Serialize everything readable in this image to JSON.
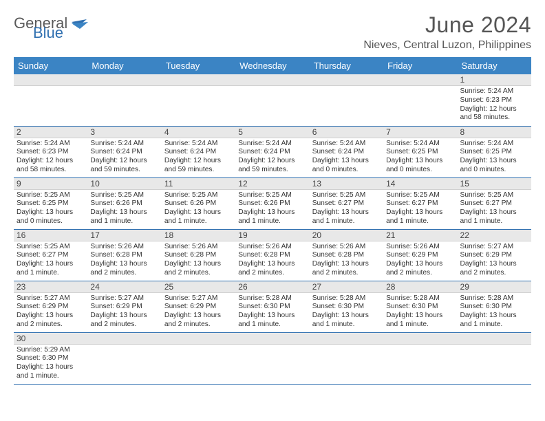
{
  "brand": {
    "part1": "General",
    "part2": "Blue"
  },
  "title": "June 2024",
  "location": "Nieves, Central Luzon, Philippines",
  "colors": {
    "header_bg": "#3b84c4",
    "border": "#2f6fb0",
    "daybar": "#e8e8e8",
    "text": "#333333"
  },
  "weekdays": [
    "Sunday",
    "Monday",
    "Tuesday",
    "Wednesday",
    "Thursday",
    "Friday",
    "Saturday"
  ],
  "first_weekday_index": 6,
  "days": [
    {
      "n": 1,
      "sunrise": "5:24 AM",
      "sunset": "6:23 PM",
      "daylight": "12 hours and 58 minutes."
    },
    {
      "n": 2,
      "sunrise": "5:24 AM",
      "sunset": "6:23 PM",
      "daylight": "12 hours and 58 minutes."
    },
    {
      "n": 3,
      "sunrise": "5:24 AM",
      "sunset": "6:24 PM",
      "daylight": "12 hours and 59 minutes."
    },
    {
      "n": 4,
      "sunrise": "5:24 AM",
      "sunset": "6:24 PM",
      "daylight": "12 hours and 59 minutes."
    },
    {
      "n": 5,
      "sunrise": "5:24 AM",
      "sunset": "6:24 PM",
      "daylight": "12 hours and 59 minutes."
    },
    {
      "n": 6,
      "sunrise": "5:24 AM",
      "sunset": "6:24 PM",
      "daylight": "13 hours and 0 minutes."
    },
    {
      "n": 7,
      "sunrise": "5:24 AM",
      "sunset": "6:25 PM",
      "daylight": "13 hours and 0 minutes."
    },
    {
      "n": 8,
      "sunrise": "5:24 AM",
      "sunset": "6:25 PM",
      "daylight": "13 hours and 0 minutes."
    },
    {
      "n": 9,
      "sunrise": "5:25 AM",
      "sunset": "6:25 PM",
      "daylight": "13 hours and 0 minutes."
    },
    {
      "n": 10,
      "sunrise": "5:25 AM",
      "sunset": "6:26 PM",
      "daylight": "13 hours and 1 minute."
    },
    {
      "n": 11,
      "sunrise": "5:25 AM",
      "sunset": "6:26 PM",
      "daylight": "13 hours and 1 minute."
    },
    {
      "n": 12,
      "sunrise": "5:25 AM",
      "sunset": "6:26 PM",
      "daylight": "13 hours and 1 minute."
    },
    {
      "n": 13,
      "sunrise": "5:25 AM",
      "sunset": "6:27 PM",
      "daylight": "13 hours and 1 minute."
    },
    {
      "n": 14,
      "sunrise": "5:25 AM",
      "sunset": "6:27 PM",
      "daylight": "13 hours and 1 minute."
    },
    {
      "n": 15,
      "sunrise": "5:25 AM",
      "sunset": "6:27 PM",
      "daylight": "13 hours and 1 minute."
    },
    {
      "n": 16,
      "sunrise": "5:25 AM",
      "sunset": "6:27 PM",
      "daylight": "13 hours and 1 minute."
    },
    {
      "n": 17,
      "sunrise": "5:26 AM",
      "sunset": "6:28 PM",
      "daylight": "13 hours and 2 minutes."
    },
    {
      "n": 18,
      "sunrise": "5:26 AM",
      "sunset": "6:28 PM",
      "daylight": "13 hours and 2 minutes."
    },
    {
      "n": 19,
      "sunrise": "5:26 AM",
      "sunset": "6:28 PM",
      "daylight": "13 hours and 2 minutes."
    },
    {
      "n": 20,
      "sunrise": "5:26 AM",
      "sunset": "6:28 PM",
      "daylight": "13 hours and 2 minutes."
    },
    {
      "n": 21,
      "sunrise": "5:26 AM",
      "sunset": "6:29 PM",
      "daylight": "13 hours and 2 minutes."
    },
    {
      "n": 22,
      "sunrise": "5:27 AM",
      "sunset": "6:29 PM",
      "daylight": "13 hours and 2 minutes."
    },
    {
      "n": 23,
      "sunrise": "5:27 AM",
      "sunset": "6:29 PM",
      "daylight": "13 hours and 2 minutes."
    },
    {
      "n": 24,
      "sunrise": "5:27 AM",
      "sunset": "6:29 PM",
      "daylight": "13 hours and 2 minutes."
    },
    {
      "n": 25,
      "sunrise": "5:27 AM",
      "sunset": "6:29 PM",
      "daylight": "13 hours and 2 minutes."
    },
    {
      "n": 26,
      "sunrise": "5:28 AM",
      "sunset": "6:30 PM",
      "daylight": "13 hours and 1 minute."
    },
    {
      "n": 27,
      "sunrise": "5:28 AM",
      "sunset": "6:30 PM",
      "daylight": "13 hours and 1 minute."
    },
    {
      "n": 28,
      "sunrise": "5:28 AM",
      "sunset": "6:30 PM",
      "daylight": "13 hours and 1 minute."
    },
    {
      "n": 29,
      "sunrise": "5:28 AM",
      "sunset": "6:30 PM",
      "daylight": "13 hours and 1 minute."
    },
    {
      "n": 30,
      "sunrise": "5:29 AM",
      "sunset": "6:30 PM",
      "daylight": "13 hours and 1 minute."
    }
  ],
  "labels": {
    "sunrise": "Sunrise:",
    "sunset": "Sunset:",
    "daylight": "Daylight:"
  }
}
